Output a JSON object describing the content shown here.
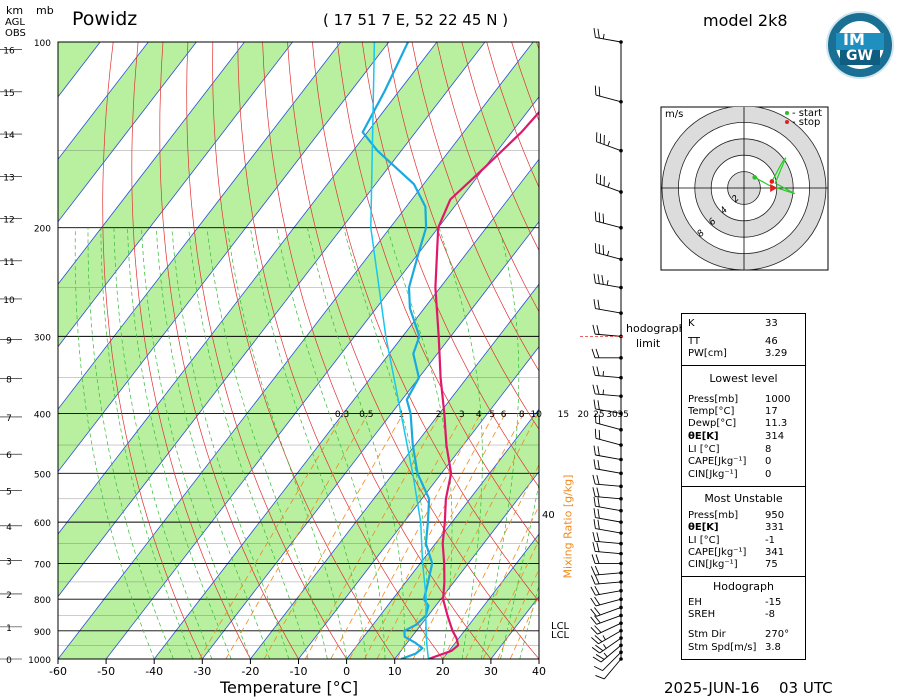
{
  "header": {
    "station": "Powidz",
    "coords": "( 17 51 7 E, 52 22 45 N )",
    "model": "model 2k8",
    "logo_top": "IM",
    "logo_bottom": "GW",
    "date": "2025-JUN-16",
    "time": "03 UTC"
  },
  "axis": {
    "km_label": "km",
    "mb_label": "mb",
    "agl_label": "AGL",
    "obs_label": "OBS",
    "xlabel": "Temperature [°C]",
    "mixing_label": "Mixing Ratio [g/kg]",
    "lcl_labels": [
      "LCL",
      "LCL"
    ],
    "hodo_label_1": "hodograph",
    "hodo_label_2": "limit"
  },
  "chart_data": [
    {
      "type": "line",
      "title": "Powidz",
      "xlabel": "Temperature [°C]",
      "ylabel": "mb",
      "x_ticks": [
        -60,
        -50,
        -40,
        -30,
        -20,
        -10,
        0,
        10,
        20,
        30,
        40
      ],
      "xlim": [
        -60,
        40
      ],
      "p_ticks": [
        100,
        200,
        300,
        400,
        500,
        600,
        700,
        800,
        900,
        1000
      ],
      "km_ticks": [
        0,
        1,
        2,
        3,
        4,
        5,
        6,
        7,
        8,
        9,
        10,
        11,
        12,
        13,
        14,
        15,
        16
      ],
      "ylim_hpa": [
        1000,
        100
      ],
      "mixing_ratio_labels": [
        "0.3",
        "0.5",
        "1",
        "2",
        "3",
        "4",
        "5",
        "6",
        "8",
        "10",
        "15",
        "20",
        "25",
        "30",
        "35",
        "40"
      ],
      "series": [
        {
          "name": "Temperature",
          "color": "#e0186a",
          "points": [
            [
              1000,
              17
            ],
            [
              970,
              20.5
            ],
            [
              950,
              21
            ],
            [
              925,
              19.5
            ],
            [
              900,
              17.5
            ],
            [
              850,
              14
            ],
            [
              800,
              10.5
            ],
            [
              750,
              8
            ],
            [
              700,
              5
            ],
            [
              650,
              1.5
            ],
            [
              600,
              -1.5
            ],
            [
              550,
              -5
            ],
            [
              500,
              -8
            ],
            [
              450,
              -13.5
            ],
            [
              400,
              -19
            ],
            [
              350,
              -25.5
            ],
            [
              300,
              -32.5
            ],
            [
              250,
              -41
            ],
            [
              200,
              -50
            ],
            [
              180,
              -52
            ],
            [
              160,
              -50
            ],
            [
              140,
              -48
            ],
            [
              120,
              -47
            ],
            [
              100,
              -44
            ]
          ]
        },
        {
          "name": "Dewpoint",
          "color": "#19a9e0",
          "points": [
            [
              1000,
              11.3
            ],
            [
              980,
              13.5
            ],
            [
              960,
              14
            ],
            [
              940,
              11.5
            ],
            [
              920,
              8.5
            ],
            [
              900,
              7.5
            ],
            [
              880,
              9
            ],
            [
              850,
              9.5
            ],
            [
              820,
              8.5
            ],
            [
              800,
              6.5
            ],
            [
              760,
              5
            ],
            [
              700,
              2.5
            ],
            [
              650,
              -2
            ],
            [
              600,
              -5
            ],
            [
              550,
              -8.5
            ],
            [
              500,
              -15
            ],
            [
              450,
              -20.5
            ],
            [
              400,
              -26
            ],
            [
              380,
              -29
            ],
            [
              350,
              -30
            ],
            [
              320,
              -35
            ],
            [
              300,
              -36.5
            ],
            [
              270,
              -43
            ],
            [
              250,
              -46.5
            ],
            [
              220,
              -50
            ],
            [
              200,
              -52.5
            ],
            [
              185,
              -56
            ],
            [
              170,
              -62
            ],
            [
              150,
              -75
            ],
            [
              140,
              -81
            ],
            [
              120,
              -83
            ],
            [
              100,
              -86
            ]
          ]
        },
        {
          "name": "Parcel",
          "color": "#19c6ee",
          "points": [
            [
              1000,
              17
            ],
            [
              950,
              14.5
            ],
            [
              900,
              12
            ],
            [
              850,
              9.5
            ],
            [
              800,
              7
            ],
            [
              700,
              0.5
            ],
            [
              600,
              -6.5
            ],
            [
              500,
              -16
            ],
            [
              400,
              -28
            ],
            [
              300,
              -43.5
            ],
            [
              200,
              -64
            ],
            [
              100,
              -93
            ]
          ]
        }
      ]
    },
    {
      "type": "scatter",
      "title": "Hodograph",
      "unit": "m/s",
      "ring_labels": [
        "2",
        "4",
        "6",
        "8"
      ],
      "legend": [
        "- start",
        "- stop"
      ],
      "legend_colors": [
        "#2bbd2b",
        "#e02020"
      ],
      "line_color": "#22cc22",
      "points_uv": [
        [
          1.3,
          1.3
        ],
        [
          3.1,
          0.3
        ],
        [
          6.2,
          -0.7
        ],
        [
          3.8,
          0.6
        ],
        [
          5.1,
          3.7
        ],
        [
          4.7,
          3.2
        ],
        [
          3.4,
          0.8
        ]
      ],
      "storm_motion_uv": [
        3.8,
        0
      ],
      "range": [
        -10,
        10
      ]
    }
  ],
  "wind_profile": [
    {
      "p": 100,
      "dir": 280,
      "spd": 15
    },
    {
      "p": 125,
      "dir": 285,
      "spd": 20
    },
    {
      "p": 150,
      "dir": 290,
      "spd": 25
    },
    {
      "p": 175,
      "dir": 290,
      "spd": 25
    },
    {
      "p": 200,
      "dir": 285,
      "spd": 30
    },
    {
      "p": 225,
      "dir": 285,
      "spd": 25
    },
    {
      "p": 250,
      "dir": 280,
      "spd": 25
    },
    {
      "p": 275,
      "dir": 280,
      "spd": 20
    },
    {
      "p": 300,
      "dir": 275,
      "spd": 20
    },
    {
      "p": 325,
      "dir": 270,
      "spd": 20
    },
    {
      "p": 350,
      "dir": 275,
      "spd": 15
    },
    {
      "p": 375,
      "dir": 275,
      "spd": 15
    },
    {
      "p": 400,
      "dir": 280,
      "spd": 20
    },
    {
      "p": 425,
      "dir": 285,
      "spd": 20
    },
    {
      "p": 450,
      "dir": 285,
      "spd": 20
    },
    {
      "p": 475,
      "dir": 280,
      "spd": 20
    },
    {
      "p": 500,
      "dir": 280,
      "spd": 20
    },
    {
      "p": 525,
      "dir": 275,
      "spd": 20
    },
    {
      "p": 550,
      "dir": 275,
      "spd": 20
    },
    {
      "p": 575,
      "dir": 280,
      "spd": 20
    },
    {
      "p": 600,
      "dir": 280,
      "spd": 20
    },
    {
      "p": 625,
      "dir": 280,
      "spd": 20
    },
    {
      "p": 650,
      "dir": 275,
      "spd": 20
    },
    {
      "p": 675,
      "dir": 275,
      "spd": 20
    },
    {
      "p": 700,
      "dir": 270,
      "spd": 20
    },
    {
      "p": 725,
      "dir": 265,
      "spd": 20
    },
    {
      "p": 750,
      "dir": 265,
      "spd": 20
    },
    {
      "p": 775,
      "dir": 260,
      "spd": 20
    },
    {
      "p": 800,
      "dir": 255,
      "spd": 20
    },
    {
      "p": 825,
      "dir": 250,
      "spd": 20
    },
    {
      "p": 850,
      "dir": 250,
      "spd": 20
    },
    {
      "p": 875,
      "dir": 245,
      "spd": 20
    },
    {
      "p": 900,
      "dir": 240,
      "spd": 15
    },
    {
      "p": 925,
      "dir": 235,
      "spd": 15
    },
    {
      "p": 950,
      "dir": 230,
      "spd": 15
    },
    {
      "p": 975,
      "dir": 225,
      "spd": 10
    },
    {
      "p": 1000,
      "dir": 220,
      "spd": 10
    }
  ],
  "indices": {
    "top": [
      {
        "k": "K",
        "v": "33"
      },
      {
        "k": "TT",
        "v": "46"
      },
      {
        "k": "PW[cm]",
        "v": "3.29"
      }
    ],
    "lowest_title": "Lowest level",
    "lowest": [
      {
        "k": "Press[mb]",
        "v": "1000"
      },
      {
        "k": "Temp[°C]",
        "v": "17"
      },
      {
        "k": "Dewp[°C]",
        "v": "11.3"
      },
      {
        "k": "θE[K]",
        "v": "314"
      },
      {
        "k": "LI [°C]",
        "v": "8"
      },
      {
        "k": "CAPE[Jkg⁻¹]",
        "v": "0"
      },
      {
        "k": "CIN[Jkg⁻¹]",
        "v": "0"
      }
    ],
    "mu_title": "Most Unstable",
    "mu": [
      {
        "k": "Press[mb]",
        "v": "950"
      },
      {
        "k": "θE[K]",
        "v": "331"
      },
      {
        "k": "LI [°C]",
        "v": "-1"
      },
      {
        "k": "CAPE[Jkg⁻¹]",
        "v": "341"
      },
      {
        "k": "CIN[Jkg⁻¹]",
        "v": "75"
      }
    ],
    "hodo_title": "Hodograph",
    "hodo": [
      {
        "k": "EH",
        "v": "-15"
      },
      {
        "k": "SREH",
        "v": "-8"
      },
      {
        "k": "Stm Dir",
        "v": "270°"
      },
      {
        "k": "Stm Spd[m/s]",
        "v": "3.8"
      }
    ]
  },
  "colors": {
    "band_green": "#b8f0a0",
    "isotherm": "#2a4fd8",
    "dry_adiabat": "#e03030",
    "moist_adiabat": "#33bb33",
    "mixing_ratio": "#f08a1c",
    "temperature": "#e0186a",
    "dewpoint": "#19a9e0"
  }
}
